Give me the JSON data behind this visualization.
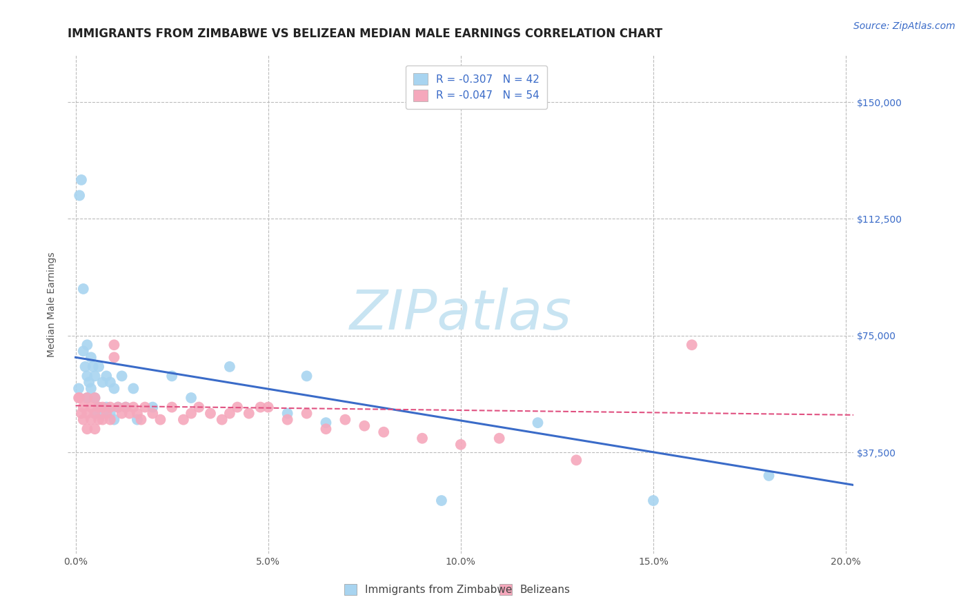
{
  "title": "IMMIGRANTS FROM ZIMBABWE VS BELIZEAN MEDIAN MALE EARNINGS CORRELATION CHART",
  "source": "Source: ZipAtlas.com",
  "ylabel": "Median Male Earnings",
  "xlim": [
    -0.002,
    0.202
  ],
  "ylim": [
    5000,
    165000
  ],
  "yticks": [
    37500,
    75000,
    112500,
    150000
  ],
  "ytick_labels": [
    "$37,500",
    "$75,000",
    "$112,500",
    "$150,000"
  ],
  "xticks": [
    0.0,
    0.05,
    0.1,
    0.15,
    0.2
  ],
  "xtick_labels": [
    "0.0%",
    "5.0%",
    "10.0%",
    "15.0%",
    "20.0%"
  ],
  "background_color": "#ffffff",
  "grid_color": "#bbbbbb",
  "series": [
    {
      "label": "Immigrants from Zimbabwe",
      "R": -0.307,
      "N": 42,
      "color": "#a8d4f0",
      "line_color": "#3a6bc8",
      "x": [
        0.0008,
        0.001,
        0.0015,
        0.002,
        0.002,
        0.0025,
        0.003,
        0.003,
        0.003,
        0.0035,
        0.004,
        0.004,
        0.0045,
        0.005,
        0.005,
        0.005,
        0.006,
        0.006,
        0.007,
        0.007,
        0.008,
        0.008,
        0.009,
        0.009,
        0.01,
        0.01,
        0.011,
        0.012,
        0.013,
        0.015,
        0.016,
        0.02,
        0.025,
        0.03,
        0.04,
        0.055,
        0.06,
        0.065,
        0.095,
        0.12,
        0.15,
        0.18
      ],
      "y": [
        58000,
        120000,
        125000,
        90000,
        70000,
        65000,
        72000,
        62000,
        55000,
        60000,
        68000,
        58000,
        65000,
        62000,
        55000,
        50000,
        65000,
        52000,
        60000,
        50000,
        62000,
        52000,
        60000,
        50000,
        58000,
        48000,
        52000,
        62000,
        52000,
        58000,
        48000,
        52000,
        62000,
        55000,
        65000,
        50000,
        62000,
        47000,
        22000,
        47000,
        22000,
        30000
      ],
      "trend_x": [
        0.0,
        0.202
      ],
      "trend_y": [
        68000,
        27000
      ]
    },
    {
      "label": "Belizeans",
      "R": -0.047,
      "N": 54,
      "color": "#f5a8bc",
      "line_color": "#e05080",
      "x": [
        0.0008,
        0.001,
        0.0015,
        0.002,
        0.002,
        0.003,
        0.003,
        0.003,
        0.004,
        0.004,
        0.005,
        0.005,
        0.005,
        0.006,
        0.006,
        0.007,
        0.007,
        0.008,
        0.009,
        0.009,
        0.01,
        0.01,
        0.011,
        0.012,
        0.013,
        0.014,
        0.015,
        0.016,
        0.017,
        0.018,
        0.02,
        0.022,
        0.025,
        0.028,
        0.03,
        0.032,
        0.035,
        0.038,
        0.04,
        0.042,
        0.045,
        0.048,
        0.05,
        0.055,
        0.06,
        0.065,
        0.07,
        0.075,
        0.08,
        0.09,
        0.1,
        0.11,
        0.13,
        0.16
      ],
      "y": [
        55000,
        55000,
        50000,
        52000,
        48000,
        55000,
        50000,
        45000,
        52000,
        48000,
        55000,
        50000,
        45000,
        52000,
        48000,
        52000,
        48000,
        50000,
        52000,
        48000,
        72000,
        68000,
        52000,
        50000,
        52000,
        50000,
        52000,
        50000,
        48000,
        52000,
        50000,
        48000,
        52000,
        48000,
        50000,
        52000,
        50000,
        48000,
        50000,
        52000,
        50000,
        52000,
        52000,
        48000,
        50000,
        45000,
        48000,
        46000,
        44000,
        42000,
        40000,
        42000,
        35000,
        72000
      ],
      "trend_x": [
        0.0,
        0.202
      ],
      "trend_y": [
        52500,
        49500
      ]
    }
  ],
  "watermark_text": "ZIPatlas",
  "watermark_color": "#c8e4f2",
  "title_fontsize": 12,
  "axis_label_fontsize": 10,
  "tick_fontsize": 10,
  "legend_fontsize": 11,
  "source_fontsize": 10,
  "source_color": "#3a6bc8",
  "tick_color": "#3a6bc8"
}
